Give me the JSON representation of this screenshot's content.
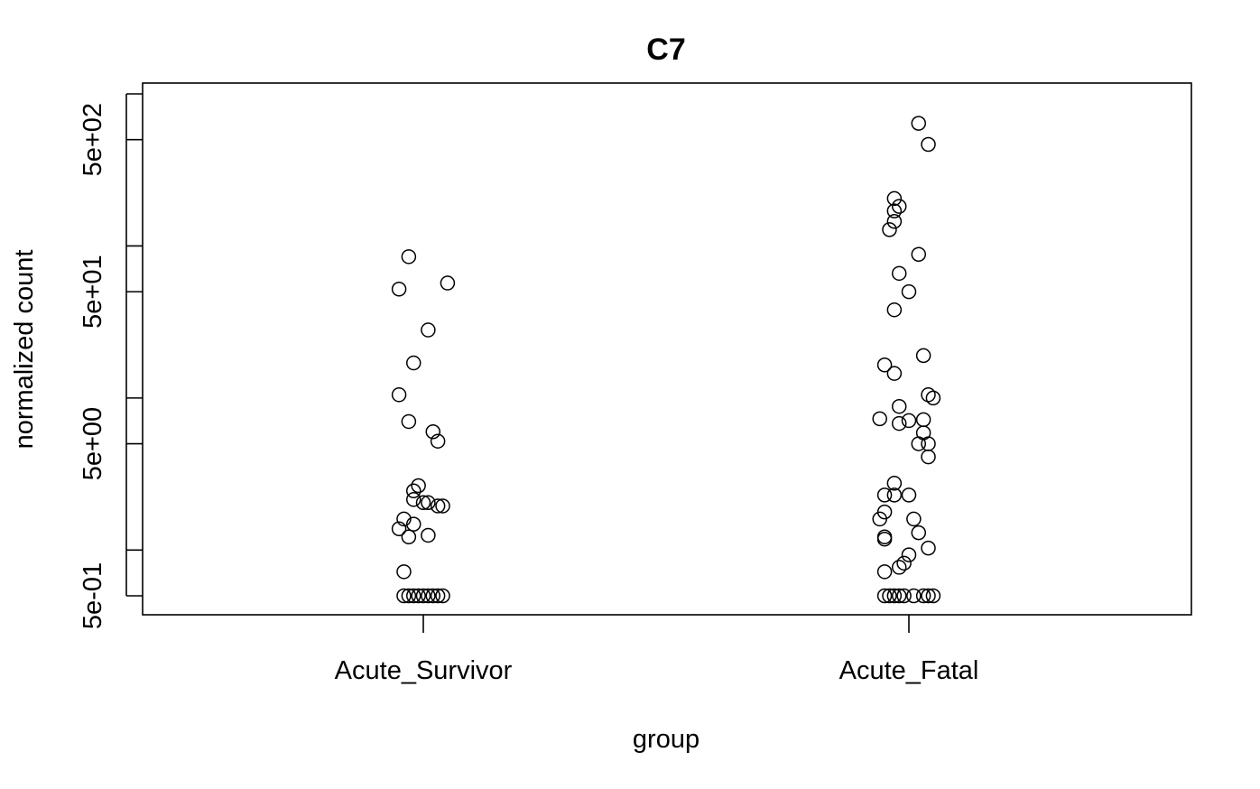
{
  "chart_data": {
    "type": "scatter",
    "title": "C7",
    "xlabel": "group",
    "ylabel": "normalized count",
    "categories": [
      "Acute_Survivor",
      "Acute_Fatal"
    ],
    "y_scale": "log",
    "ylim": [
      0.4,
      860
    ],
    "y_ticks": [
      0.5,
      1,
      5,
      10,
      50,
      100,
      500,
      1000
    ],
    "y_tick_labels": [
      "5e-01",
      "",
      "5e+00",
      "",
      "5e+01",
      "",
      "5e+02",
      ""
    ],
    "grid": false,
    "legend": "none",
    "point_color": "#000000",
    "series": [
      {
        "category": "Acute_Survivor",
        "points": [
          {
            "x": 0.97,
            "y": 85
          },
          {
            "x": 0.95,
            "y": 52
          },
          {
            "x": 1.05,
            "y": 57
          },
          {
            "x": 1.01,
            "y": 28
          },
          {
            "x": 0.98,
            "y": 17
          },
          {
            "x": 0.95,
            "y": 10.5
          },
          {
            "x": 0.97,
            "y": 7.0
          },
          {
            "x": 1.02,
            "y": 6.0
          },
          {
            "x": 1.03,
            "y": 5.2
          },
          {
            "x": 0.99,
            "y": 2.65
          },
          {
            "x": 0.98,
            "y": 2.45
          },
          {
            "x": 0.98,
            "y": 2.15
          },
          {
            "x": 1.0,
            "y": 2.05
          },
          {
            "x": 1.01,
            "y": 2.05
          },
          {
            "x": 1.03,
            "y": 1.95
          },
          {
            "x": 1.04,
            "y": 1.95
          },
          {
            "x": 0.96,
            "y": 1.6
          },
          {
            "x": 0.98,
            "y": 1.48
          },
          {
            "x": 0.95,
            "y": 1.38
          },
          {
            "x": 0.97,
            "y": 1.22
          },
          {
            "x": 1.01,
            "y": 1.25
          },
          {
            "x": 0.96,
            "y": 0.72
          },
          {
            "x": 0.96,
            "y": 0.5
          },
          {
            "x": 0.97,
            "y": 0.5
          },
          {
            "x": 0.98,
            "y": 0.5
          },
          {
            "x": 0.99,
            "y": 0.5
          },
          {
            "x": 1.0,
            "y": 0.5
          },
          {
            "x": 1.01,
            "y": 0.5
          },
          {
            "x": 1.02,
            "y": 0.5
          },
          {
            "x": 1.03,
            "y": 0.5
          },
          {
            "x": 1.04,
            "y": 0.5
          }
        ]
      },
      {
        "category": "Acute_Fatal",
        "points": [
          {
            "x": 2.02,
            "y": 640
          },
          {
            "x": 2.04,
            "y": 465
          },
          {
            "x": 1.97,
            "y": 205
          },
          {
            "x": 1.98,
            "y": 182
          },
          {
            "x": 1.97,
            "y": 170
          },
          {
            "x": 1.97,
            "y": 145
          },
          {
            "x": 1.96,
            "y": 128
          },
          {
            "x": 2.02,
            "y": 88
          },
          {
            "x": 1.98,
            "y": 66
          },
          {
            "x": 2.0,
            "y": 50
          },
          {
            "x": 1.97,
            "y": 38
          },
          {
            "x": 2.03,
            "y": 19
          },
          {
            "x": 1.95,
            "y": 16.5
          },
          {
            "x": 1.97,
            "y": 14.5
          },
          {
            "x": 2.04,
            "y": 10.5
          },
          {
            "x": 2.05,
            "y": 10
          },
          {
            "x": 1.98,
            "y": 8.8
          },
          {
            "x": 2.03,
            "y": 7.2
          },
          {
            "x": 1.94,
            "y": 7.3
          },
          {
            "x": 2.0,
            "y": 7.1
          },
          {
            "x": 1.98,
            "y": 6.8
          },
          {
            "x": 2.03,
            "y": 5.9
          },
          {
            "x": 2.02,
            "y": 5.0
          },
          {
            "x": 2.04,
            "y": 5.0
          },
          {
            "x": 2.04,
            "y": 4.1
          },
          {
            "x": 1.97,
            "y": 2.75
          },
          {
            "x": 1.95,
            "y": 2.3
          },
          {
            "x": 1.97,
            "y": 2.3
          },
          {
            "x": 2.0,
            "y": 2.3
          },
          {
            "x": 1.95,
            "y": 1.78
          },
          {
            "x": 1.94,
            "y": 1.6
          },
          {
            "x": 2.01,
            "y": 1.6
          },
          {
            "x": 2.02,
            "y": 1.3
          },
          {
            "x": 1.95,
            "y": 1.22
          },
          {
            "x": 1.95,
            "y": 1.18
          },
          {
            "x": 2.04,
            "y": 1.03
          },
          {
            "x": 2.0,
            "y": 0.93
          },
          {
            "x": 1.99,
            "y": 0.82
          },
          {
            "x": 1.98,
            "y": 0.77
          },
          {
            "x": 1.95,
            "y": 0.72
          },
          {
            "x": 1.95,
            "y": 0.5
          },
          {
            "x": 1.96,
            "y": 0.5
          },
          {
            "x": 1.97,
            "y": 0.5
          },
          {
            "x": 1.98,
            "y": 0.5
          },
          {
            "x": 1.99,
            "y": 0.5
          },
          {
            "x": 2.01,
            "y": 0.5
          },
          {
            "x": 2.03,
            "y": 0.5
          },
          {
            "x": 2.04,
            "y": 0.5
          },
          {
            "x": 2.05,
            "y": 0.5
          }
        ]
      }
    ]
  }
}
